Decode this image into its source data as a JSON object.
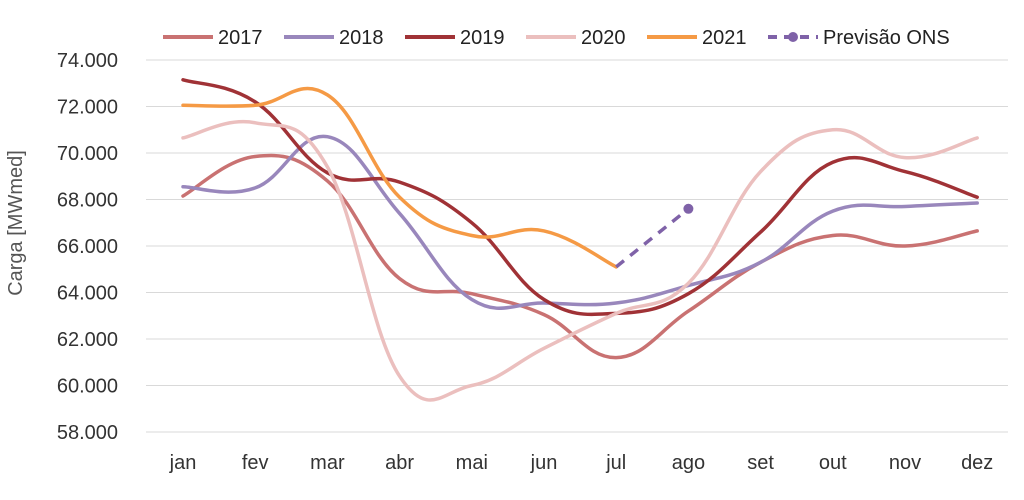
{
  "chart_data": {
    "type": "line",
    "title": "",
    "xlabel": "",
    "ylabel": "Carga [MWmed]",
    "ylim": [
      58000,
      74000
    ],
    "yticks": [
      58000,
      60000,
      62000,
      64000,
      66000,
      68000,
      70000,
      72000,
      74000
    ],
    "ytick_labels": [
      "58.000",
      "60.000",
      "62.000",
      "64.000",
      "66.000",
      "68.000",
      "70.000",
      "72.000",
      "74.000"
    ],
    "grid": true,
    "legend_position": "top",
    "categories": [
      "jan",
      "fev",
      "mar",
      "abr",
      "mai",
      "jun",
      "jul",
      "ago",
      "set",
      "out",
      "nov",
      "dez"
    ],
    "series": [
      {
        "name": "2017",
        "color": "#C97272",
        "dashed": false,
        "values": [
          68150,
          69850,
          68800,
          64600,
          63950,
          63050,
          61200,
          63200,
          65300,
          66450,
          66000,
          66650
        ]
      },
      {
        "name": "2018",
        "color": "#9987BC",
        "dashed": false,
        "values": [
          68550,
          68500,
          70700,
          67400,
          63700,
          63550,
          63550,
          64300,
          65300,
          67500,
          67700,
          67850
        ]
      },
      {
        "name": "2019",
        "color": "#A03236",
        "dashed": false,
        "values": [
          73150,
          72200,
          69150,
          68750,
          67000,
          63700,
          63100,
          63950,
          66600,
          69600,
          69200,
          68100
        ]
      },
      {
        "name": "2020",
        "color": "#EBBFBE",
        "dashed": false,
        "values": [
          70650,
          71300,
          69400,
          60400,
          60000,
          61600,
          63100,
          64400,
          69200,
          71000,
          69800,
          70650
        ]
      },
      {
        "name": "2021",
        "color": "#F59A45",
        "dashed": false,
        "values": [
          72050,
          72050,
          72500,
          68100,
          66450,
          66650,
          65100,
          null,
          null,
          null,
          null,
          null
        ]
      },
      {
        "name": "Previsão ONS",
        "color": "#7F62A8",
        "dashed": true,
        "values": [
          null,
          null,
          null,
          null,
          null,
          null,
          65100,
          67600,
          null,
          null,
          null,
          null
        ]
      }
    ]
  }
}
